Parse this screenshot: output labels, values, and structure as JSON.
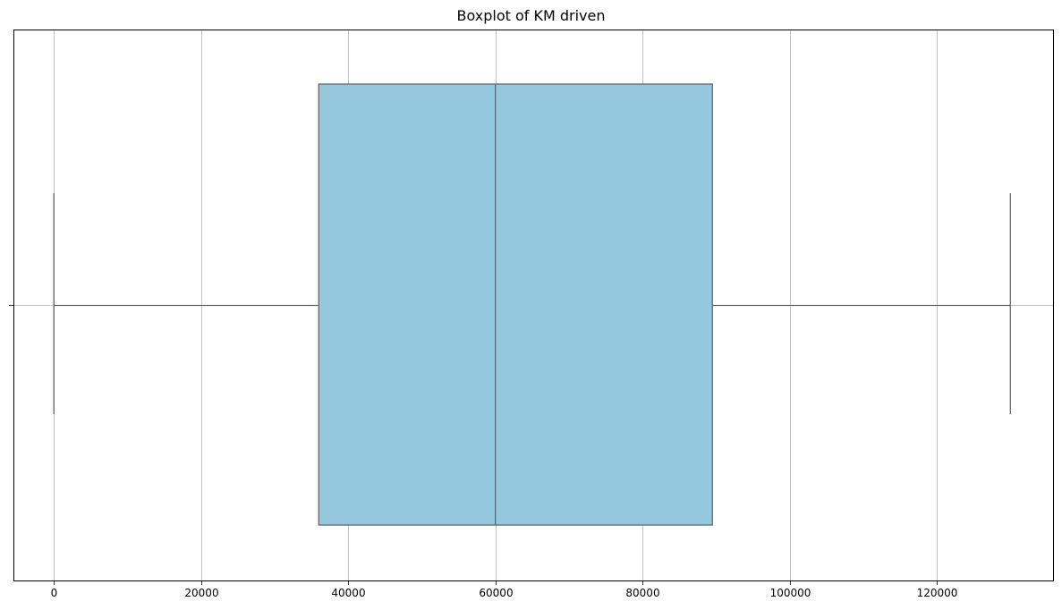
{
  "chart_data": {
    "type": "box",
    "title": "Boxplot of KM driven",
    "xlabel": "",
    "ylabel": "",
    "orientation": "horizontal",
    "xlim": [
      -5500,
      135800
    ],
    "x_ticks": [
      0,
      20000,
      40000,
      60000,
      80000,
      100000,
      120000
    ],
    "x_tick_labels": [
      "0",
      "20000",
      "40000",
      "60000",
      "80000",
      "100000",
      "120000"
    ],
    "grid": true,
    "box": {
      "whisker_low": 0,
      "q1": 36000,
      "median": 60000,
      "q3": 89500,
      "whisker_high": 130000
    },
    "colors": {
      "box_fill": "#95c8de",
      "box_edge": "#666666",
      "grid": "#b0b0b0",
      "axes": "#000000"
    }
  }
}
